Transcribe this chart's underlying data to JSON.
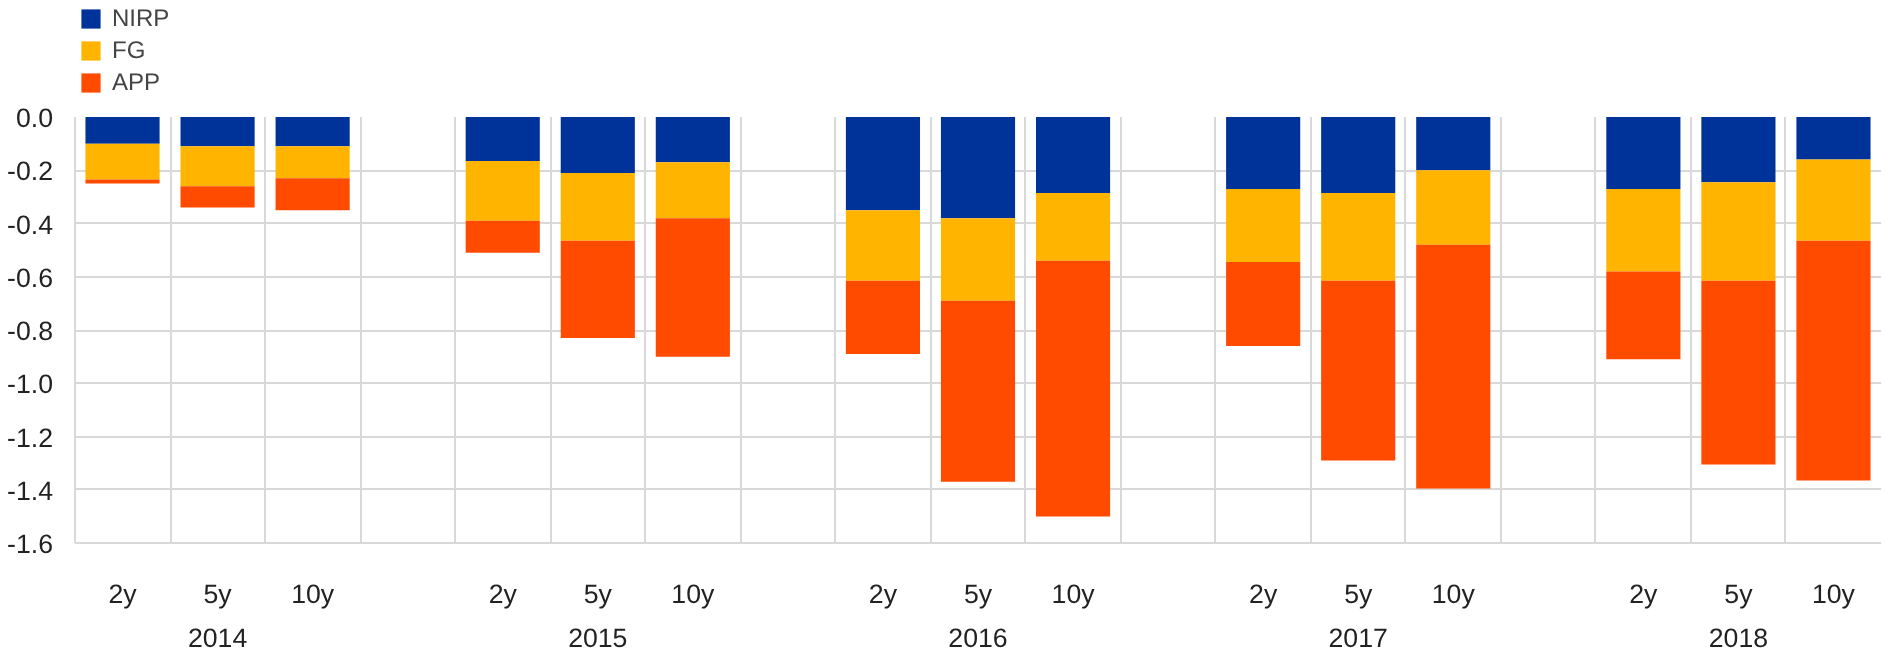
{
  "chart_data": {
    "type": "bar",
    "stacked": true,
    "categories": [
      "2y",
      "5y",
      "10y",
      null,
      "2y",
      "5y",
      "10y",
      null,
      "2y",
      "5y",
      "10y",
      null,
      "2y",
      "5y",
      "10y",
      null,
      "2y",
      "5y",
      "10y"
    ],
    "series": [
      {
        "name": "NIRP",
        "color": "#003399",
        "values": [
          -0.1,
          -0.11,
          -0.11,
          null,
          -0.165,
          -0.21,
          -0.17,
          null,
          -0.35,
          -0.38,
          -0.285,
          null,
          -0.27,
          -0.285,
          -0.2,
          null,
          -0.27,
          -0.245,
          -0.16
        ]
      },
      {
        "name": "FG",
        "color": "#ffb400",
        "values": [
          -0.135,
          -0.15,
          -0.12,
          null,
          -0.225,
          -0.255,
          -0.21,
          null,
          -0.265,
          -0.31,
          -0.255,
          null,
          -0.275,
          -0.33,
          -0.28,
          null,
          -0.31,
          -0.37,
          -0.305
        ]
      },
      {
        "name": "APP",
        "color": "#ff4b00",
        "values": [
          -0.015,
          -0.08,
          -0.12,
          null,
          -0.12,
          -0.365,
          -0.52,
          null,
          -0.275,
          -0.68,
          -0.96,
          null,
          -0.315,
          -0.675,
          -0.915,
          null,
          -0.33,
          -0.69,
          -0.9
        ]
      }
    ],
    "annotations": [
      "2014",
      "2015",
      "2016",
      "2017",
      "2018"
    ],
    "ylim": [
      -1.6,
      0.0
    ],
    "yticks": [
      {
        "value": 0.0,
        "label": "0.0"
      },
      {
        "value": -0.2,
        "label": "-0.2"
      },
      {
        "value": -0.4,
        "label": "-0.4"
      },
      {
        "value": -0.6,
        "label": "-0.6"
      },
      {
        "value": -0.8,
        "label": "-0.8"
      },
      {
        "value": -1.0,
        "label": "-1.0"
      },
      {
        "value": -1.2,
        "label": "-1.2"
      },
      {
        "value": -1.4,
        "label": "-1.4"
      },
      {
        "value": -1.6,
        "label": "-1.6"
      }
    ],
    "grid": true,
    "legend": "top left"
  }
}
